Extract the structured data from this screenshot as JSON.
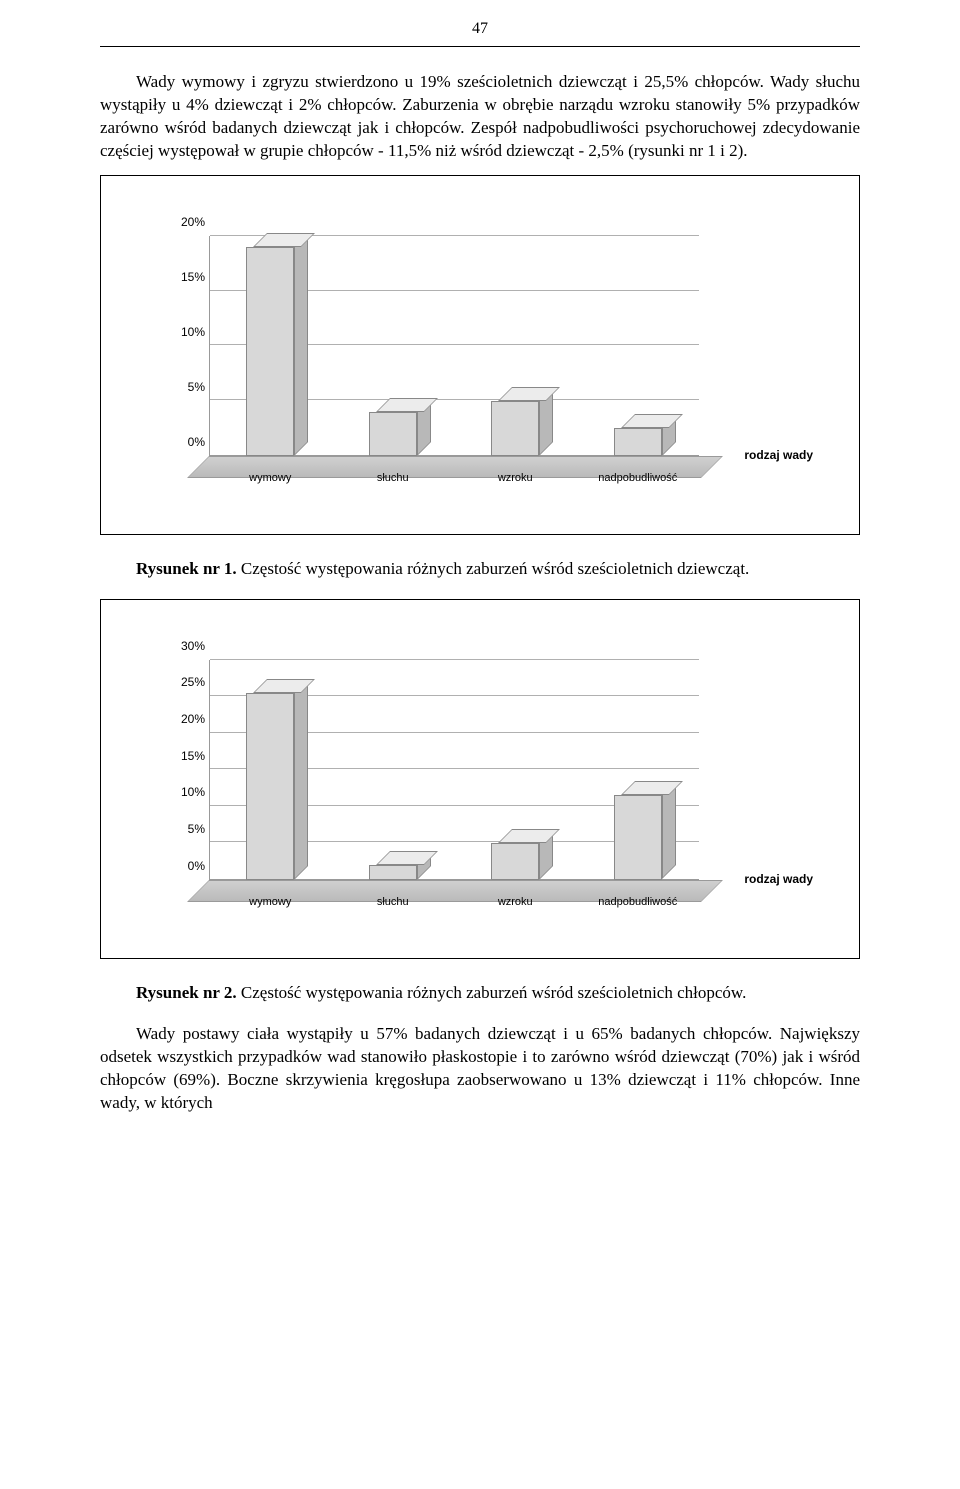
{
  "page_number": "47",
  "paragraph1": "Wady wymowy i zgryzu stwierdzono u 19% sześcioletnich dziewcząt i 25,5% chłopców. Wady słuchu wystąpiły u 4% dziewcząt i 2% chłopców. Zaburzenia w obrębie narządu wzroku stanowiły 5% przypadków zarówno wśród badanych dziewcząt jak i chłopców. Zespół nadpobudliwości psychoruchowej zdecydowanie częściej występował w grupie chłopców - 11,5% niż wśród dziewcząt - 2,5% (rysunki nr 1 i 2).",
  "chart1": {
    "type": "bar3d",
    "categories": [
      "wymowy",
      "słuchu",
      "wzroku",
      "nadpobudliwość"
    ],
    "values": [
      19,
      4,
      5,
      2.5
    ],
    "y_ticks": [
      "0%",
      "5%",
      "10%",
      "15%",
      "20%"
    ],
    "y_max": 20,
    "z_label": "rodzaj wady",
    "bar_color_front": "#d8d8d8",
    "bar_color_top": "#ececec",
    "bar_color_side": "#b8b8b8",
    "grid_color": "#b0b0b0",
    "label_fontsize": 12
  },
  "caption1_bold": "Rysunek nr 1.",
  "caption1_rest": " Częstość występowania różnych zaburzeń wśród sześcioletnich dziewcząt.",
  "chart2": {
    "type": "bar3d",
    "categories": [
      "wymowy",
      "słuchu",
      "wzroku",
      "nadpobudliwość"
    ],
    "values": [
      25.5,
      2,
      5,
      11.5
    ],
    "y_ticks": [
      "0%",
      "5%",
      "10%",
      "15%",
      "20%",
      "25%",
      "30%"
    ],
    "y_max": 30,
    "z_label": "rodzaj wady",
    "bar_color_front": "#d8d8d8",
    "bar_color_top": "#ececec",
    "bar_color_side": "#b8b8b8",
    "grid_color": "#b0b0b0",
    "label_fontsize": 12
  },
  "caption2_bold": "Rysunek nr 2.",
  "caption2_rest": " Częstość występowania różnych zaburzeń wśród sześcioletnich chłopców.",
  "paragraph2": "Wady postawy ciała wystąpiły u 57% badanych dziewcząt i u 65% badanych chłopców. Największy odsetek wszystkich przypadków wad stanowiło płaskostopie i to zarówno wśród dziewcząt (70%) jak i wśród chłopców (69%). Boczne skrzywienia kręgosłupa zaobserwowano u 13% dziewcząt i 11% chłopców. Inne wady, w których"
}
